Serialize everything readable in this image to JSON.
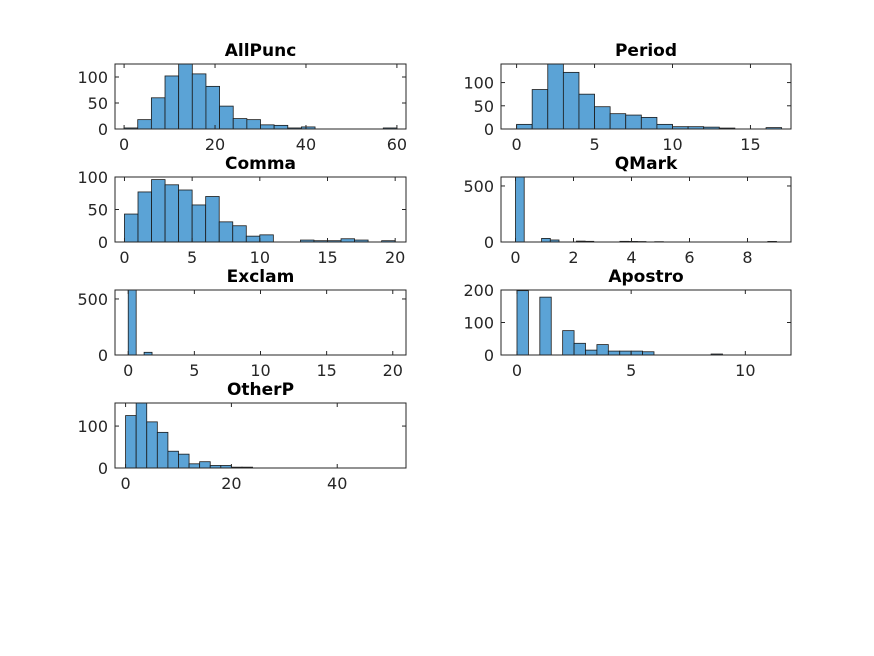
{
  "figure": {
    "background": "#ffffff",
    "bar_color": "#5ba3d6",
    "edge_color": "#1a1a1a"
  },
  "chart_data": [
    {
      "type": "bar",
      "title": "AllPunc",
      "xlim": [
        -2,
        62
      ],
      "ylim": [
        0,
        125
      ],
      "xticks": [
        0,
        20,
        40,
        60
      ],
      "yticks": [
        0,
        50,
        100
      ],
      "grid": false,
      "bin_edges": [
        0,
        3,
        6,
        9,
        12,
        15,
        18,
        21,
        24,
        27,
        30,
        33,
        36,
        39,
        42,
        45,
        48,
        51,
        54,
        57,
        60
      ],
      "values": [
        2,
        18,
        60,
        102,
        125,
        106,
        82,
        44,
        20,
        18,
        8,
        7,
        2,
        4,
        0,
        0,
        0,
        0,
        0,
        2
      ]
    },
    {
      "type": "bar",
      "title": "Period",
      "xlim": [
        -1,
        17.6
      ],
      "ylim": [
        0,
        140
      ],
      "xticks": [
        0,
        5,
        10,
        15
      ],
      "yticks": [
        0,
        50,
        100
      ],
      "grid": false,
      "bin_edges": [
        0,
        1,
        2,
        3,
        4,
        5,
        6,
        7,
        8,
        9,
        10,
        11,
        12,
        13,
        14,
        15,
        16,
        17
      ],
      "values": [
        10,
        85,
        140,
        122,
        75,
        48,
        33,
        30,
        25,
        10,
        5,
        5,
        4,
        2,
        0,
        0,
        3
      ]
    },
    {
      "type": "bar",
      "title": "Comma",
      "xlim": [
        -0.7,
        20.8
      ],
      "ylim": [
        0,
        100
      ],
      "xticks": [
        0,
        5,
        10,
        15,
        20
      ],
      "yticks": [
        0,
        50,
        100
      ],
      "grid": false,
      "bin_edges": [
        0,
        1,
        2,
        3,
        4,
        5,
        6,
        7,
        8,
        9,
        10,
        11,
        12,
        13,
        14,
        15,
        16,
        17,
        18,
        19,
        20
      ],
      "values": [
        43,
        77,
        96,
        88,
        80,
        57,
        70,
        31,
        25,
        9,
        11,
        0,
        0,
        3,
        2,
        2,
        5,
        3,
        0,
        2
      ]
    },
    {
      "type": "bar",
      "title": "QMark",
      "xlim": [
        -0.5,
        9.5
      ],
      "ylim": [
        0,
        580
      ],
      "xticks": [
        0,
        2,
        4,
        6,
        8
      ],
      "yticks": [
        0,
        500
      ],
      "grid": false,
      "bin_edges": [
        0,
        0.3,
        0.6,
        0.9,
        1.2,
        1.5,
        1.8,
        2.1,
        2.4,
        2.7,
        3.0,
        3.3,
        3.6,
        3.9,
        4.2,
        4.5,
        4.8,
        5.1,
        5.4,
        5.7,
        6.0,
        6.3,
        6.6,
        6.9,
        7.2,
        7.5,
        7.8,
        8.1,
        8.4,
        8.7,
        9.0
      ],
      "values": [
        580,
        0,
        0,
        32,
        18,
        0,
        0,
        8,
        6,
        0,
        0,
        0,
        6,
        5,
        4,
        0,
        3,
        0,
        0,
        0,
        0,
        0,
        0,
        0,
        0,
        0,
        0,
        0,
        0,
        5
      ]
    },
    {
      "type": "bar",
      "title": "Exclam",
      "xlim": [
        -1,
        21
      ],
      "ylim": [
        0,
        580
      ],
      "xticks": [
        0,
        5,
        10,
        15,
        20
      ],
      "yticks": [
        0,
        500
      ],
      "grid": false,
      "bin_edges": [
        0,
        0.6,
        1.2,
        1.8
      ],
      "values": [
        580,
        0,
        24
      ]
    },
    {
      "type": "bar",
      "title": "Apostro",
      "xlim": [
        -0.7,
        12
      ],
      "ylim": [
        0,
        200
      ],
      "xticks": [
        0,
        5,
        10
      ],
      "yticks": [
        0,
        100,
        200
      ],
      "grid": false,
      "bin_edges": [
        0,
        0.5,
        1.0,
        1.5,
        2.0,
        2.5,
        3.0,
        3.5,
        4.0,
        4.5,
        5.0,
        5.5,
        6.0,
        6.5,
        7.0,
        7.5,
        8.0,
        8.5,
        9.0
      ],
      "values": [
        198,
        0,
        178,
        0,
        75,
        36,
        15,
        32,
        12,
        12,
        12,
        10,
        0,
        0,
        0,
        0,
        0,
        3
      ]
    },
    {
      "type": "bar",
      "title": "OtherP",
      "xlim": [
        -2,
        53
      ],
      "ylim": [
        0,
        155
      ],
      "xticks": [
        0,
        20,
        40
      ],
      "yticks": [
        0,
        100
      ],
      "grid": false,
      "bin_edges": [
        0,
        2,
        4,
        6,
        8,
        10,
        12,
        14,
        16,
        18,
        20,
        22,
        24
      ],
      "values": [
        125,
        155,
        110,
        85,
        40,
        33,
        10,
        15,
        6,
        6,
        2,
        2
      ]
    }
  ]
}
